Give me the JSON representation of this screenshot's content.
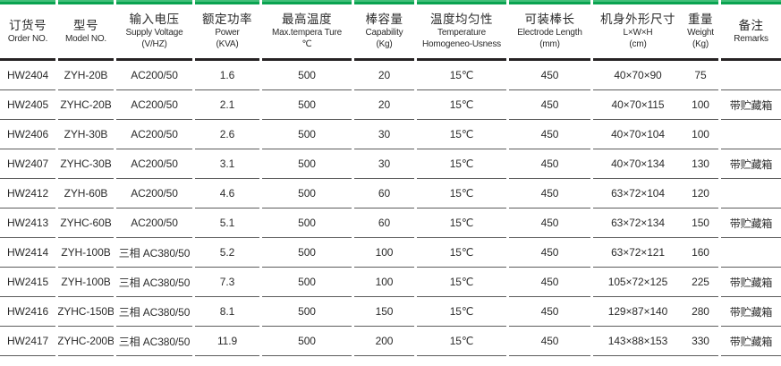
{
  "colors": {
    "accent_green_light": "#43c07a",
    "accent_green_dark": "#0ba351",
    "header_rule": "#262223",
    "row_rule": "#5c5c5c",
    "text": "#2b2b2b",
    "background": "#ffffff"
  },
  "table": {
    "columns": [
      {
        "key": "order-no",
        "zh": "订货号",
        "en": "Order NO.",
        "sub": ""
      },
      {
        "key": "model-no",
        "zh": "型号",
        "en": "Model NO.",
        "sub": ""
      },
      {
        "key": "supply-voltage",
        "zh": "输入电压",
        "en": "Supply Voltage",
        "sub": "(V/HZ)"
      },
      {
        "key": "power",
        "zh": "额定功率",
        "en": "Power",
        "sub": "(KVA)"
      },
      {
        "key": "max-temperature",
        "zh": "最高温度",
        "en": "Max.tempera Ture",
        "sub": "℃"
      },
      {
        "key": "capability",
        "zh": "棒容量",
        "en": "Capability",
        "sub": "(Kg)"
      },
      {
        "key": "temperature-homogeneity",
        "zh": "温度均匀性",
        "en": "Temperature",
        "sub": "Homogeneo-Usness"
      },
      {
        "key": "electrode-length",
        "zh": "可装棒长",
        "en": "Electrode Length",
        "sub": "(mm)"
      },
      {
        "key": "dimensions",
        "zh": "机身外形尺寸",
        "en": "L×W×H",
        "sub": "(cm)"
      },
      {
        "key": "weight",
        "zh": "重量",
        "en": "Weight",
        "sub": "(Kg)"
      },
      {
        "key": "remarks",
        "zh": "备注",
        "en": "Remarks",
        "sub": ""
      }
    ],
    "rows": [
      [
        "HW2404",
        "ZYH-20B",
        "AC200/50",
        "1.6",
        "500",
        "20",
        "15℃",
        "450",
        "40×70×90",
        "75",
        ""
      ],
      [
        "HW2405",
        "ZYHC-20B",
        "AC200/50",
        "2.1",
        "500",
        "20",
        "15℃",
        "450",
        "40×70×115",
        "100",
        "带贮藏箱"
      ],
      [
        "HW2406",
        "ZYH-30B",
        "AC200/50",
        "2.6",
        "500",
        "30",
        "15℃",
        "450",
        "40×70×104",
        "100",
        ""
      ],
      [
        "HW2407",
        "ZYHC-30B",
        "AC200/50",
        "3.1",
        "500",
        "30",
        "15℃",
        "450",
        "40×70×134",
        "130",
        "带贮藏箱"
      ],
      [
        "HW2412",
        "ZYH-60B",
        "AC200/50",
        "4.6",
        "500",
        "60",
        "15℃",
        "450",
        "63×72×104",
        "120",
        ""
      ],
      [
        "HW2413",
        "ZYHC-60B",
        "AC200/50",
        "5.1",
        "500",
        "60",
        "15℃",
        "450",
        "63×72×134",
        "150",
        "带贮藏箱"
      ],
      [
        "HW2414",
        "ZYH-100B",
        "三相 AC380/50",
        "5.2",
        "500",
        "100",
        "15℃",
        "450",
        "63×72×121",
        "160",
        ""
      ],
      [
        "HW2415",
        "ZYH-100B",
        "三相 AC380/50",
        "7.3",
        "500",
        "100",
        "15℃",
        "450",
        "105×72×125",
        "225",
        "带贮藏箱"
      ],
      [
        "HW2416",
        "ZYHC-150B",
        "三相 AC380/50",
        "8.1",
        "500",
        "150",
        "15℃",
        "450",
        "129×87×140",
        "280",
        "带贮藏箱"
      ],
      [
        "HW2417",
        "ZYHC-200B",
        "三相 AC380/50",
        "11.9",
        "500",
        "200",
        "15℃",
        "450",
        "143×88×153",
        "330",
        "带贮藏箱"
      ]
    ]
  }
}
